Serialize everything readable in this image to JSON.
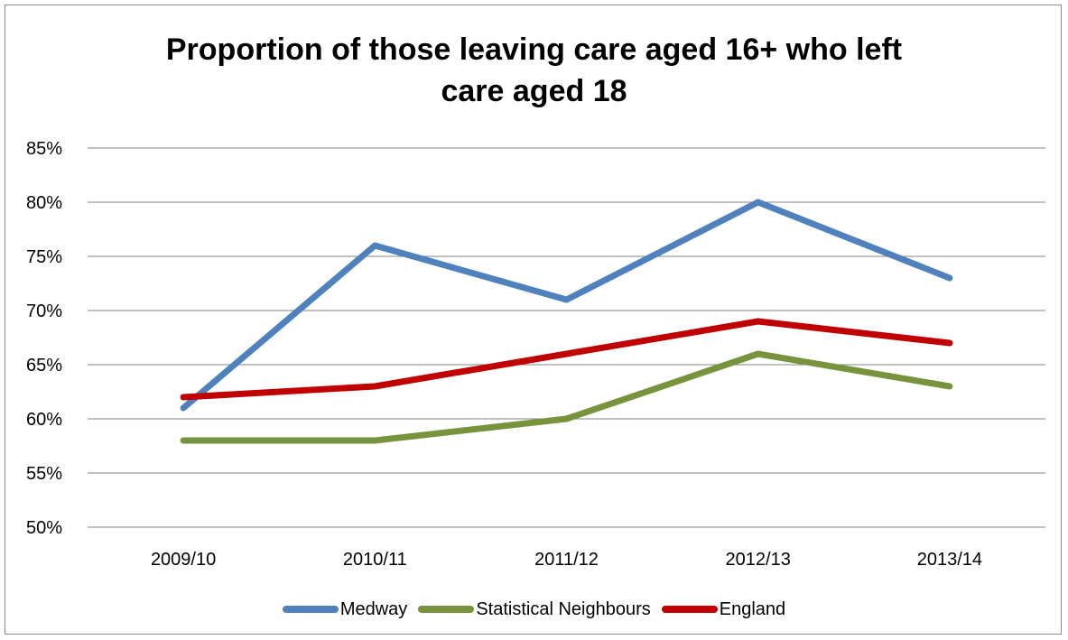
{
  "chart_data": {
    "type": "line",
    "title": "Proportion of those leaving care aged 16+ who left care aged 18",
    "title_lines": [
      "Proportion of those leaving care aged 16+ who left",
      "care aged 18"
    ],
    "categories": [
      "2009/10",
      "2010/11",
      "2011/12",
      "2012/13",
      "2013/14"
    ],
    "y_ticks": [
      "50%",
      "55%",
      "60%",
      "65%",
      "70%",
      "75%",
      "80%",
      "85%"
    ],
    "ylim": [
      50,
      85
    ],
    "grid": true,
    "legend_position": "bottom",
    "series": [
      {
        "name": "Medway",
        "color": "#4f81bd",
        "values": [
          61,
          76,
          71,
          80,
          73
        ]
      },
      {
        "name": "Statistical Neighbours",
        "color": "#77933c",
        "values": [
          58,
          58,
          60,
          66,
          63
        ]
      },
      {
        "name": "England",
        "color": "#c00000",
        "values": [
          62,
          63,
          66,
          69,
          67
        ]
      }
    ]
  }
}
